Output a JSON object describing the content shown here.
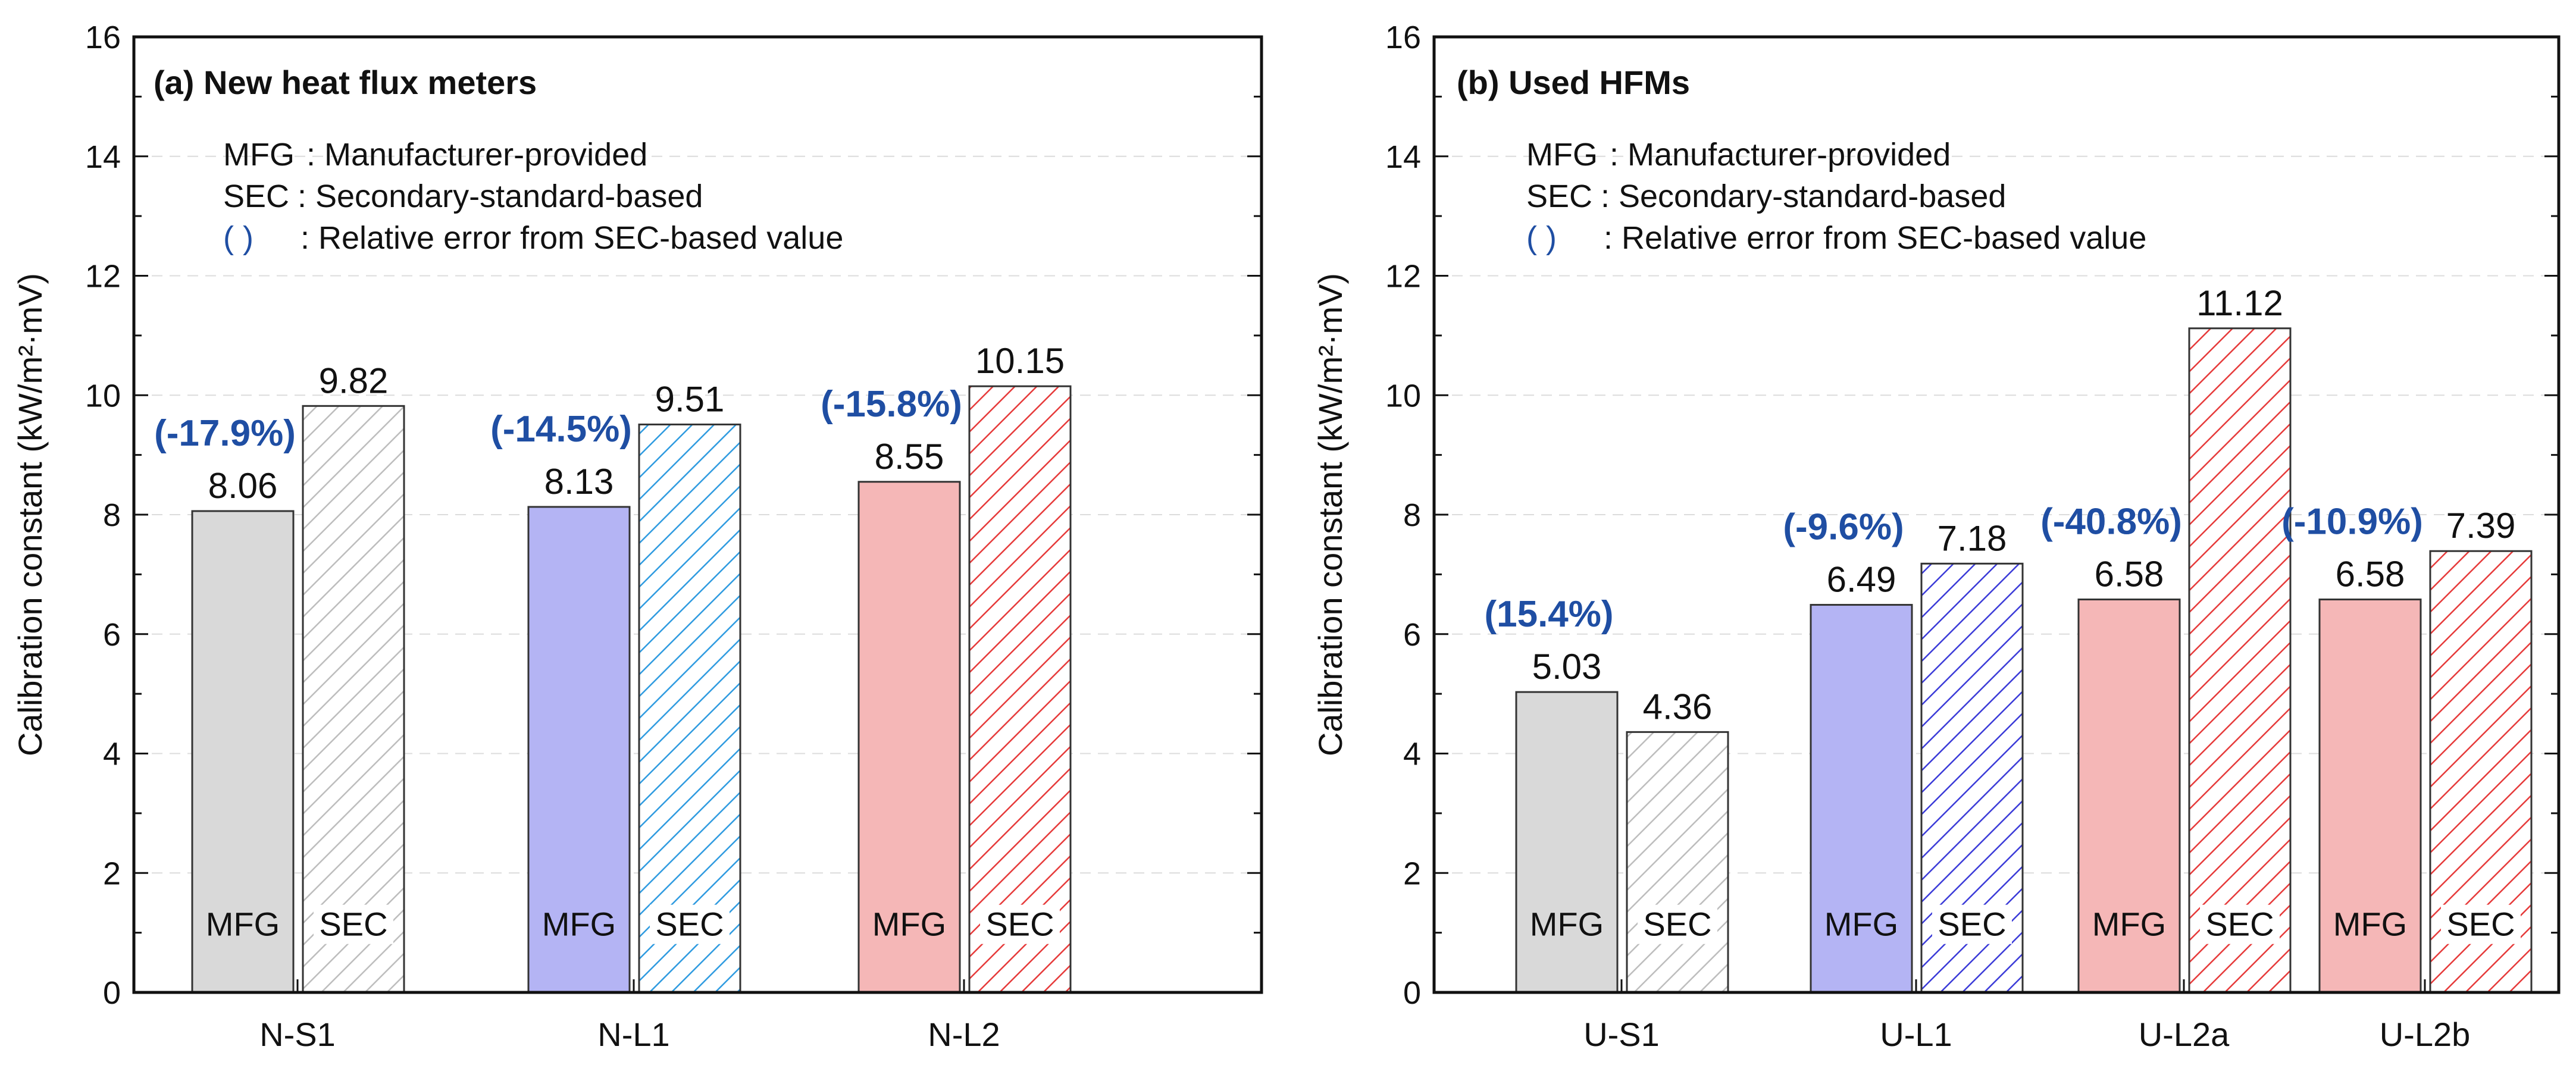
{
  "colors": {
    "gray": "#d9d9d9",
    "blue": "#b4b4f4",
    "red": "#f5b7b7",
    "gray_hatch": "#bdbdbd",
    "blue_hatch": "#2f9be0",
    "blue_hatch_u": "#3b3bd8",
    "red_hatch": "#e63a3a",
    "error_text": "#1f4ea3"
  },
  "chart_data": [
    {
      "type": "bar",
      "title": "(a) New heat flux meters",
      "ylabel": "Calibration constant (kW/m²·mV)",
      "xlabel": "",
      "ylim": [
        0,
        16
      ],
      "yticks": [
        "0",
        "2",
        "4",
        "6",
        "8",
        "10",
        "12",
        "14",
        "16"
      ],
      "legend": [
        {
          "abbr": "MFG",
          "sep": ":",
          "text": "Manufacturer-provided"
        },
        {
          "abbr": "SEC",
          "sep": ":",
          "text": "Secondary-standard-based"
        },
        {
          "abbr": "(      )",
          "sep": ":",
          "text": "Relative error from SEC-based value"
        }
      ],
      "categories": [
        "N-S1",
        "N-L1",
        "N-L2"
      ],
      "series_names": [
        "MFG",
        "SEC"
      ],
      "bars": [
        {
          "category": "N-S1",
          "mfg": {
            "value": 8.06,
            "label": "8.06",
            "color": "gray",
            "type_label": "MFG"
          },
          "sec": {
            "value": 9.82,
            "label": "9.82",
            "hatch": "gray_hatch",
            "type_label": "SEC"
          },
          "error": "(-17.9%)"
        },
        {
          "category": "N-L1",
          "mfg": {
            "value": 8.13,
            "label": "8.13",
            "color": "blue",
            "type_label": "MFG"
          },
          "sec": {
            "value": 9.51,
            "label": "9.51",
            "hatch": "blue_hatch",
            "type_label": "SEC"
          },
          "error": "(-14.5%)"
        },
        {
          "category": "N-L2",
          "mfg": {
            "value": 8.55,
            "label": "8.55",
            "color": "red",
            "type_label": "MFG"
          },
          "sec": {
            "value": 10.15,
            "label": "10.15",
            "hatch": "red_hatch",
            "type_label": "SEC"
          },
          "error": "(-15.8%)"
        }
      ]
    },
    {
      "type": "bar",
      "title": "(b) Used HFMs",
      "ylabel": "Calibration constant (kW/m²·mV)",
      "xlabel": "",
      "ylim": [
        0,
        16
      ],
      "yticks": [
        "0",
        "2",
        "4",
        "6",
        "8",
        "10",
        "12",
        "14",
        "16"
      ],
      "legend": [
        {
          "abbr": "MFG",
          "sep": ":",
          "text": "Manufacturer-provided"
        },
        {
          "abbr": "SEC",
          "sep": ":",
          "text": "Secondary-standard-based"
        },
        {
          "abbr": "(      )",
          "sep": ":",
          "text": "Relative error from SEC-based value"
        }
      ],
      "categories": [
        "U-S1",
        "U-L1",
        "U-L2a",
        "U-L2b"
      ],
      "series_names": [
        "MFG",
        "SEC"
      ],
      "bars": [
        {
          "category": "U-S1",
          "mfg": {
            "value": 5.03,
            "label": "5.03",
            "color": "gray",
            "type_label": "MFG"
          },
          "sec": {
            "value": 4.36,
            "label": "4.36",
            "hatch": "gray_hatch",
            "type_label": "SEC"
          },
          "error": "(15.4%)"
        },
        {
          "category": "U-L1",
          "mfg": {
            "value": 6.49,
            "label": "6.49",
            "color": "blue",
            "type_label": "MFG"
          },
          "sec": {
            "value": 7.18,
            "label": "7.18",
            "hatch": "blue_hatch_u",
            "type_label": "SEC"
          },
          "error": "(-9.6%)"
        },
        {
          "category": "U-L2a",
          "mfg": {
            "value": 6.58,
            "label": "6.58",
            "color": "red",
            "type_label": "MFG"
          },
          "sec": {
            "value": 11.12,
            "label": "11.12",
            "hatch": "red_hatch",
            "type_label": "SEC"
          },
          "error": "(-40.8%)"
        },
        {
          "category": "U-L2b",
          "mfg": {
            "value": 6.58,
            "label": "6.58",
            "color": "red",
            "type_label": "MFG"
          },
          "sec": {
            "value": 7.39,
            "label": "7.39",
            "hatch": "red_hatch",
            "type_label": "SEC"
          },
          "error": "(-10.9%)"
        }
      ]
    }
  ]
}
